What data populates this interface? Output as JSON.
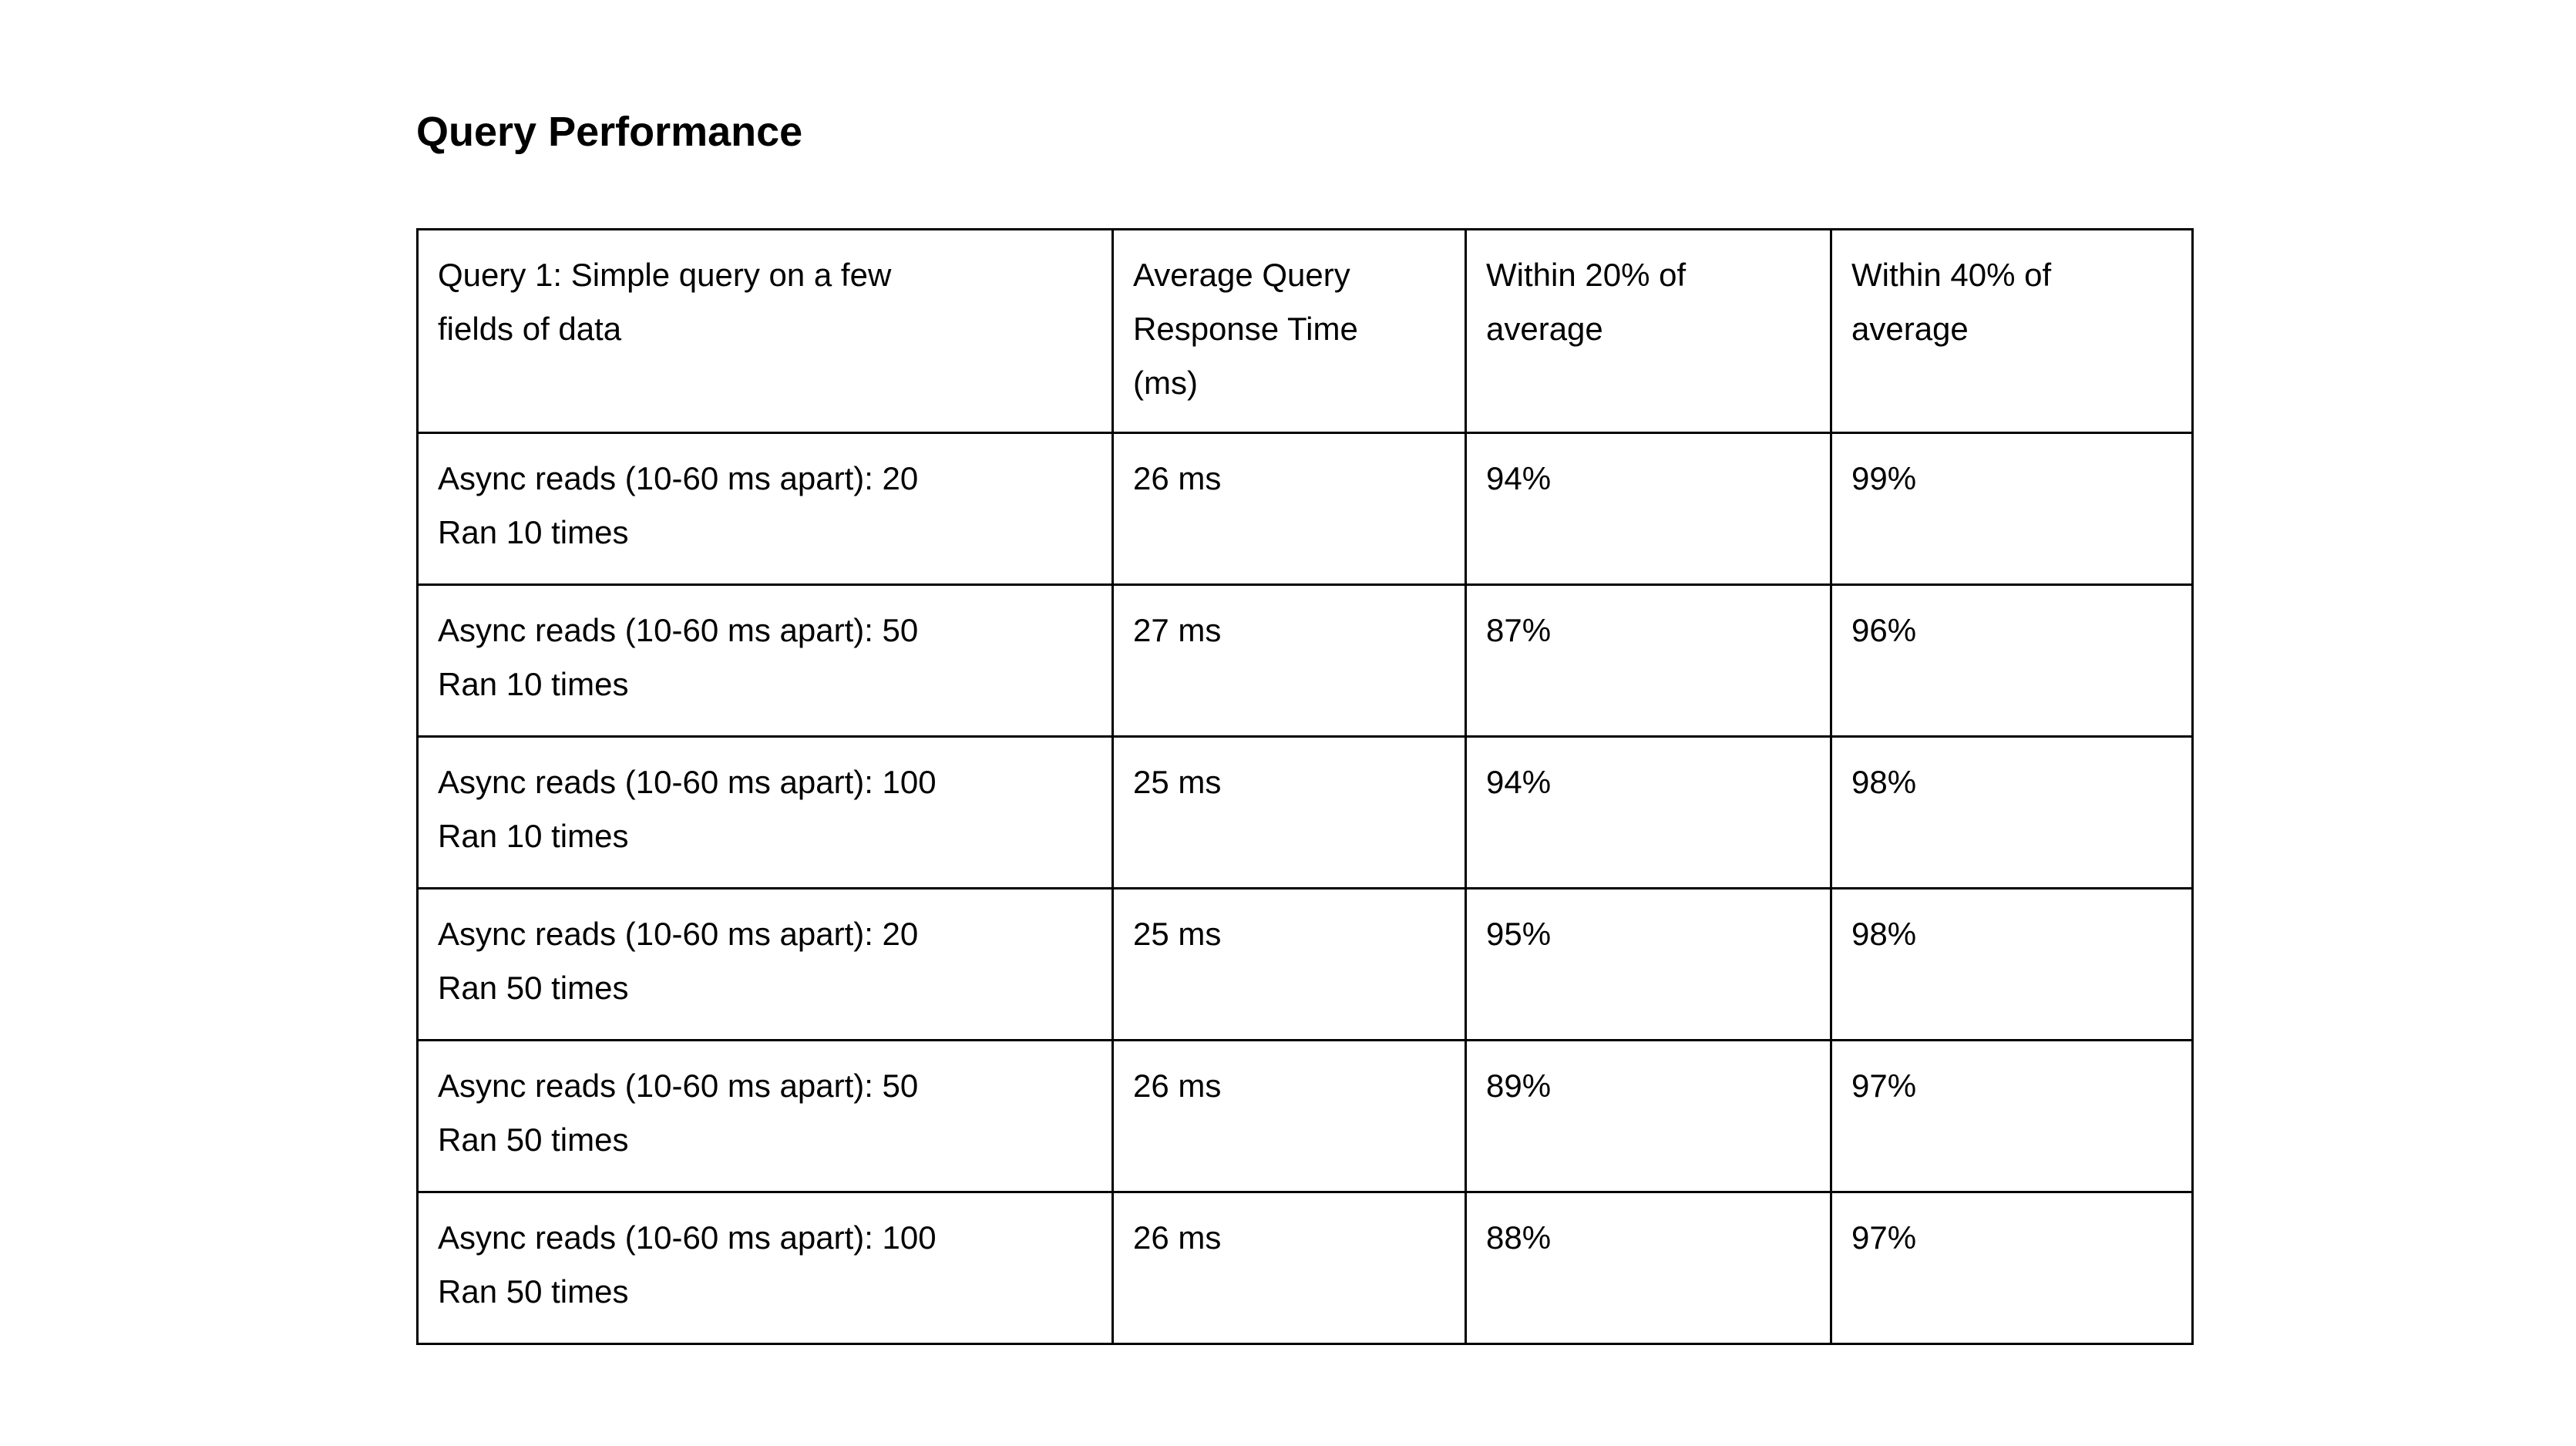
{
  "document": {
    "title": "Query Performance"
  },
  "colors": {
    "background": "#ffffff",
    "text": "#000000",
    "table_border": "#000000"
  },
  "table": {
    "headers": [
      [
        "Query 1: Simple query on a few",
        "fields of data"
      ],
      [
        "Average Query",
        "Response Time",
        "(ms)"
      ],
      [
        "Within 20% of",
        "average"
      ],
      [
        "Within 40% of",
        "average"
      ]
    ],
    "rows": [
      {
        "scenario": [
          "Async reads (10-60 ms apart): 20",
          "Ran 10 times"
        ],
        "avg_response_time": "26 ms",
        "within_20_of_average": "94%",
        "within_40_of_average": "99%"
      },
      {
        "scenario": [
          "Async reads (10-60 ms apart): 50",
          "Ran 10 times"
        ],
        "avg_response_time": "27 ms",
        "within_20_of_average": "87%",
        "within_40_of_average": "96%"
      },
      {
        "scenario": [
          "Async reads (10-60 ms apart): 100",
          "Ran 10 times"
        ],
        "avg_response_time": "25 ms",
        "within_20_of_average": "94%",
        "within_40_of_average": "98%"
      },
      {
        "scenario": [
          "Async reads (10-60 ms apart): 20",
          "Ran 50 times"
        ],
        "avg_response_time": "25 ms",
        "within_20_of_average": "95%",
        "within_40_of_average": "98%"
      },
      {
        "scenario": [
          "Async reads (10-60 ms apart): 50",
          "Ran 50 times"
        ],
        "avg_response_time": "26 ms",
        "within_20_of_average": "89%",
        "within_40_of_average": "97%"
      },
      {
        "scenario": [
          "Async reads (10-60 ms apart): 100",
          "Ran 50 times"
        ],
        "avg_response_time": "26 ms",
        "within_20_of_average": "88%",
        "within_40_of_average": "97%"
      }
    ]
  }
}
